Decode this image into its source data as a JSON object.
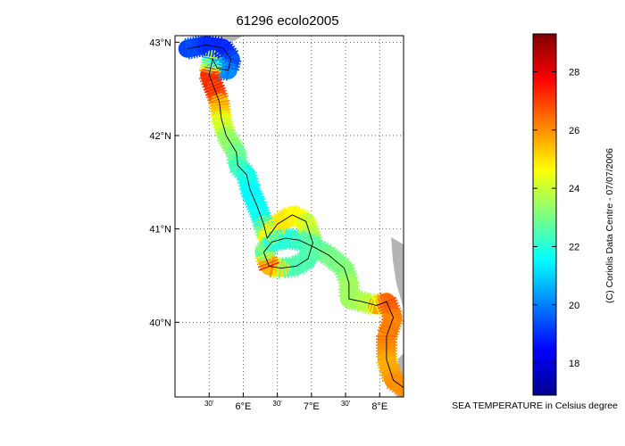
{
  "figure": {
    "title": "61296 ecolo2005",
    "credit": "(C) Coriolis Data Centre - 07/07/2006"
  },
  "map": {
    "lat_ticks": [
      {
        "value": 43,
        "label": "43°N"
      },
      {
        "value": 42,
        "label": "42°N"
      },
      {
        "value": 41,
        "label": "41°N"
      },
      {
        "value": 40,
        "label": "40°N"
      }
    ],
    "lon_ticks": [
      {
        "value": 5.5,
        "label": "30'"
      },
      {
        "value": 6.0,
        "label": "6°E"
      },
      {
        "value": 6.5,
        "label": "30'"
      },
      {
        "value": 7.0,
        "label": "7°E"
      },
      {
        "value": 7.5,
        "label": "30'"
      },
      {
        "value": 8.0,
        "label": "8°E"
      }
    ],
    "extent": {
      "lon": [
        5.0,
        8.35
      ],
      "lat": [
        39.2,
        43.07
      ]
    },
    "grid": true,
    "land_color": "#b4b4b4",
    "track_line_color": "#000000",
    "track": [
      {
        "lon": 5.18,
        "lat": 42.93,
        "temp": 19.5
      },
      {
        "lon": 5.45,
        "lat": 42.97,
        "temp": 19.0
      },
      {
        "lon": 5.7,
        "lat": 42.94,
        "temp": 18.8
      },
      {
        "lon": 5.82,
        "lat": 42.82,
        "temp": 19.2
      },
      {
        "lon": 5.78,
        "lat": 42.7,
        "temp": 19.8
      },
      {
        "lon": 5.62,
        "lat": 42.72,
        "temp": 20.5
      },
      {
        "lon": 5.55,
        "lat": 42.82,
        "temp": 20.5
      },
      {
        "lon": 5.5,
        "lat": 42.65,
        "temp": 27.0
      },
      {
        "lon": 5.58,
        "lat": 42.5,
        "temp": 27.5
      },
      {
        "lon": 5.65,
        "lat": 42.36,
        "temp": 26.0
      },
      {
        "lon": 5.68,
        "lat": 42.18,
        "temp": 24.5
      },
      {
        "lon": 5.75,
        "lat": 42.0,
        "temp": 23.5
      },
      {
        "lon": 5.9,
        "lat": 41.82,
        "temp": 23.0
      },
      {
        "lon": 5.92,
        "lat": 41.68,
        "temp": 22.5
      },
      {
        "lon": 6.05,
        "lat": 41.58,
        "temp": 22.0
      },
      {
        "lon": 6.1,
        "lat": 41.42,
        "temp": 21.5
      },
      {
        "lon": 6.2,
        "lat": 41.25,
        "temp": 21.5
      },
      {
        "lon": 6.3,
        "lat": 41.05,
        "temp": 22.0
      },
      {
        "lon": 6.35,
        "lat": 40.9,
        "temp": 24.5
      },
      {
        "lon": 6.5,
        "lat": 41.05,
        "temp": 25.0
      },
      {
        "lon": 6.72,
        "lat": 41.15,
        "temp": 24.8
      },
      {
        "lon": 6.92,
        "lat": 41.08,
        "temp": 24.5
      },
      {
        "lon": 7.02,
        "lat": 40.85,
        "temp": 23.0
      },
      {
        "lon": 6.95,
        "lat": 40.68,
        "temp": 22.5
      },
      {
        "lon": 6.78,
        "lat": 40.6,
        "temp": 22.5
      },
      {
        "lon": 6.55,
        "lat": 40.58,
        "temp": 22.5
      },
      {
        "lon": 6.38,
        "lat": 40.6,
        "temp": 27.5
      },
      {
        "lon": 6.3,
        "lat": 40.75,
        "temp": 23.5
      },
      {
        "lon": 6.42,
        "lat": 40.86,
        "temp": 22.0
      },
      {
        "lon": 6.62,
        "lat": 40.9,
        "temp": 22.0
      },
      {
        "lon": 6.82,
        "lat": 40.88,
        "temp": 22.2
      },
      {
        "lon": 7.05,
        "lat": 40.8,
        "temp": 22.5
      },
      {
        "lon": 7.25,
        "lat": 40.72,
        "temp": 23.0
      },
      {
        "lon": 7.48,
        "lat": 40.58,
        "temp": 23.0
      },
      {
        "lon": 7.55,
        "lat": 40.42,
        "temp": 23.5
      },
      {
        "lon": 7.55,
        "lat": 40.25,
        "temp": 23.5
      },
      {
        "lon": 7.75,
        "lat": 40.22,
        "temp": 23.5
      },
      {
        "lon": 7.95,
        "lat": 40.18,
        "temp": 24.5
      },
      {
        "lon": 8.1,
        "lat": 40.22,
        "temp": 27.0
      },
      {
        "lon": 8.2,
        "lat": 40.05,
        "temp": 26.0
      },
      {
        "lon": 8.1,
        "lat": 39.85,
        "temp": 26.5
      },
      {
        "lon": 8.1,
        "lat": 39.6,
        "temp": 25.5
      },
      {
        "lon": 8.2,
        "lat": 39.38,
        "temp": 26.0
      },
      {
        "lon": 8.35,
        "lat": 39.3,
        "temp": 26.0
      }
    ]
  },
  "colorbar": {
    "label": "SEA TEMPERATURE in Celsius degree",
    "range": [
      16.9,
      29.3
    ],
    "ticks": [
      {
        "value": 18,
        "label": "18"
      },
      {
        "value": 20,
        "label": "20"
      },
      {
        "value": 22,
        "label": "22"
      },
      {
        "value": 24,
        "label": "24"
      },
      {
        "value": 26,
        "label": "26"
      },
      {
        "value": 28,
        "label": "28"
      }
    ],
    "colormap": "jet"
  }
}
